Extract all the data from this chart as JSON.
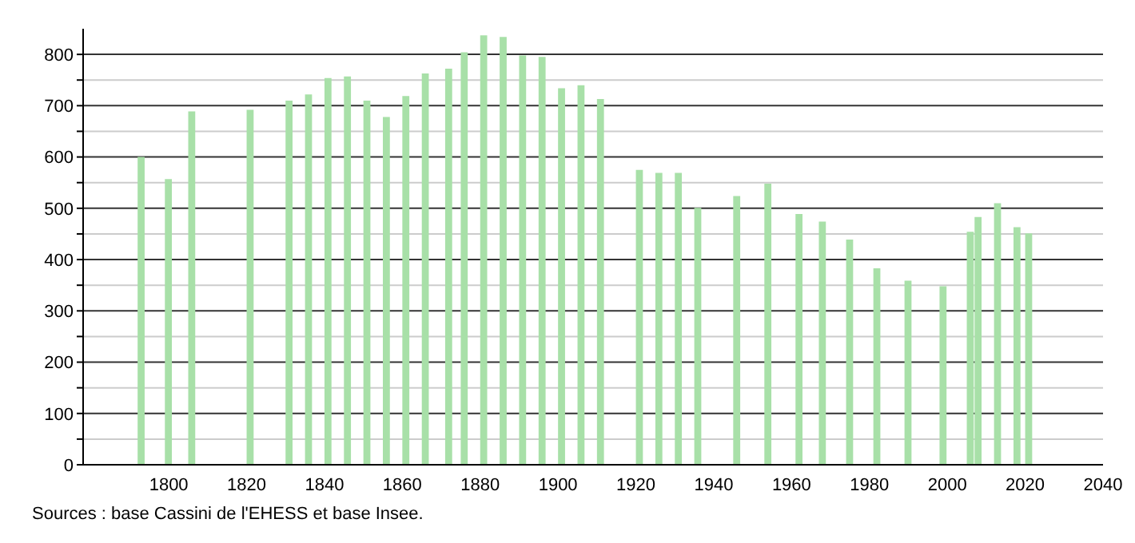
{
  "chart_data": {
    "type": "bar",
    "x": [
      1793,
      1800,
      1806,
      1821,
      1831,
      1836,
      1841,
      1846,
      1851,
      1856,
      1861,
      1866,
      1872,
      1876,
      1881,
      1886,
      1891,
      1896,
      1901,
      1906,
      1911,
      1921,
      1926,
      1931,
      1936,
      1946,
      1954,
      1962,
      1968,
      1975,
      1982,
      1990,
      1999,
      2006,
      2008,
      2013,
      2018,
      2021
    ],
    "values": [
      600,
      557,
      689,
      692,
      710,
      722,
      754,
      757,
      710,
      678,
      719,
      763,
      772,
      804,
      837,
      834,
      798,
      795,
      734,
      740,
      713,
      575,
      569,
      569,
      501,
      524,
      548,
      489,
      474,
      439,
      383,
      359,
      348,
      454,
      483,
      510,
      463,
      451
    ],
    "color": "#a8e0a8",
    "xlim": [
      1778,
      2040
    ],
    "xticks": [
      1800,
      1820,
      1840,
      1860,
      1880,
      1900,
      1920,
      1940,
      1960,
      1980,
      2000,
      2020,
      2040
    ],
    "ylim": [
      0,
      850
    ],
    "yticks": [
      0,
      {
        "value": 50,
        "label": null
      },
      100,
      {
        "value": 150,
        "label": null
      },
      200,
      {
        "value": 250,
        "label": null
      },
      300,
      {
        "value": 350,
        "label": null
      },
      400,
      {
        "value": 450,
        "label": null
      },
      500,
      {
        "value": 550,
        "label": null
      },
      600,
      {
        "value": 650,
        "label": null
      },
      700,
      {
        "value": 750,
        "label": null
      },
      800
    ],
    "grid": "y",
    "annotations": [
      "Sources : base Cassini de l'EHESS et base Insee."
    ]
  }
}
